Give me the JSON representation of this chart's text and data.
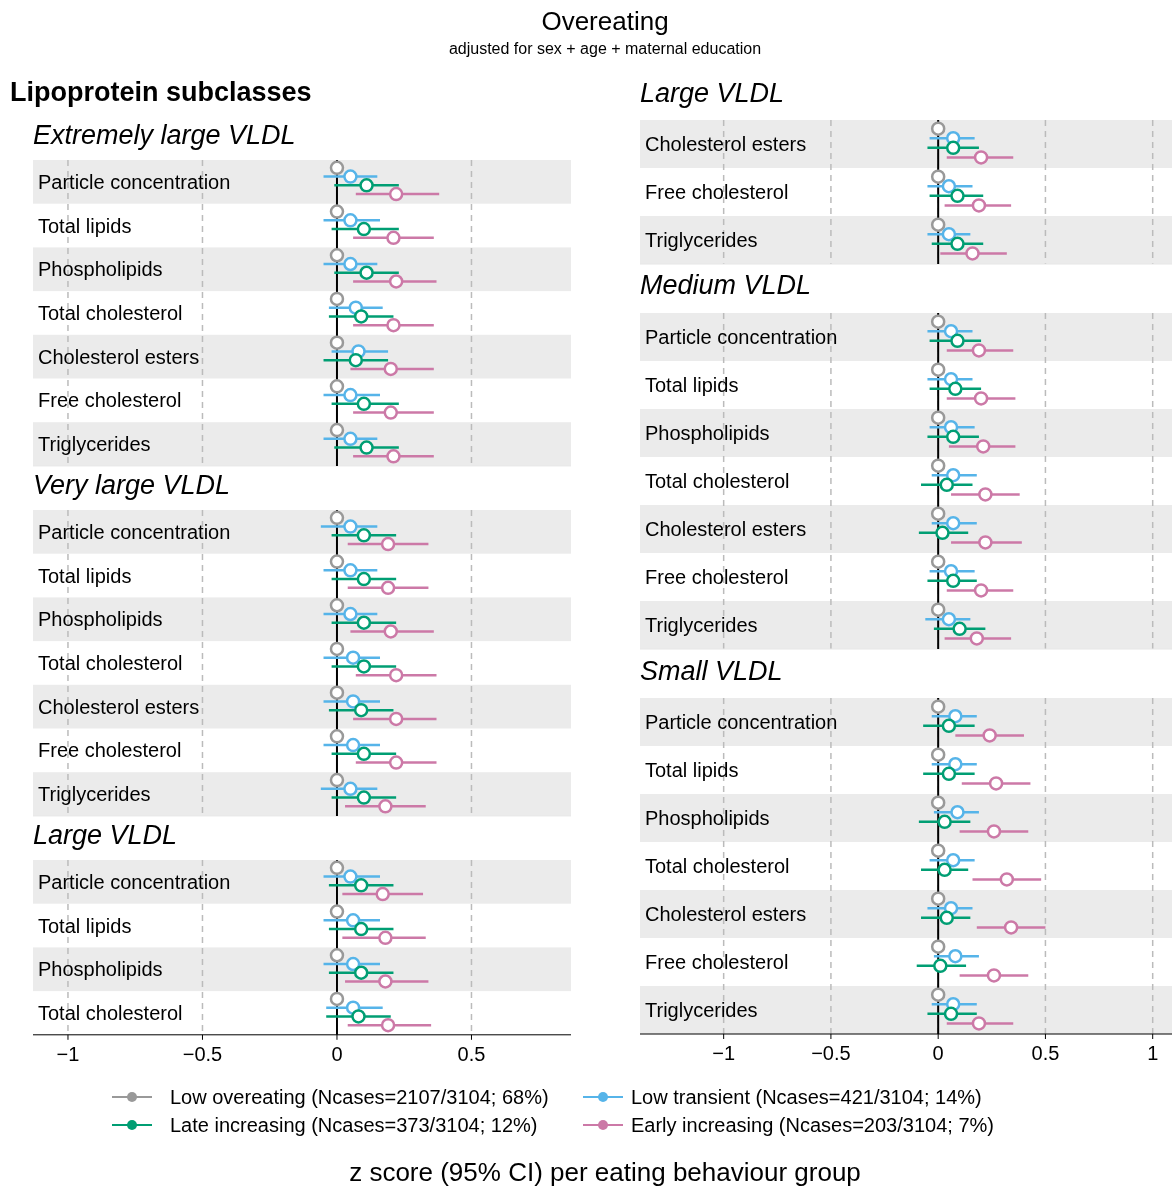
{
  "chart_data": [
    {
      "type": "other",
      "title": "Overeating",
      "subtitle": "adjusted for sex + age + maternal education",
      "annotations": [
        "Lipoprotein subclasses",
        "z score (95% CI) per eating behaviour group"
      ]
    },
    {
      "type": "scatter",
      "orientation": "horizontal",
      "title": "Extremely large VLDL",
      "categories": [
        "Particle concentration",
        "Total lipids",
        "Phospholipids",
        "Total cholesterol",
        "Cholesterol esters",
        "Free cholesterol",
        "Triglycerides"
      ],
      "xlim": [
        -1.13,
        0.87
      ],
      "xticks": [
        -1,
        -0.5,
        0,
        0.5
      ],
      "tick_labels": false,
      "grid": "x",
      "marker": "circle",
      "ref_lines": [
        {
          "axis": "x",
          "value": 0,
          "color": "#000000",
          "line_style": "solid"
        }
      ],
      "series": [
        {
          "color": "#999999",
          "values": [
            0,
            0,
            0,
            0,
            0,
            0,
            0
          ]
        },
        {
          "color": "#56b4e9",
          "values": [
            0.05,
            0.05,
            0.05,
            0.07,
            0.08,
            0.05,
            0.05
          ],
          "errors": [
            [
              -0.05,
              0.15
            ],
            [
              -0.05,
              0.16
            ],
            [
              -0.05,
              0.15
            ],
            [
              -0.03,
              0.17
            ],
            [
              -0.02,
              0.19
            ],
            [
              -0.05,
              0.16
            ],
            [
              -0.05,
              0.15
            ]
          ]
        },
        {
          "color": "#009e73",
          "values": [
            0.11,
            0.1,
            0.11,
            0.09,
            0.07,
            0.1,
            0.11
          ],
          "errors": [
            [
              -0.01,
              0.23
            ],
            [
              -0.02,
              0.23
            ],
            [
              -0.01,
              0.23
            ],
            [
              -0.03,
              0.21
            ],
            [
              -0.05,
              0.19
            ],
            [
              -0.02,
              0.23
            ],
            [
              -0.01,
              0.23
            ]
          ]
        },
        {
          "color": "#cc79a7",
          "values": [
            0.22,
            0.21,
            0.22,
            0.21,
            0.2,
            0.2,
            0.21
          ],
          "errors": [
            [
              0.07,
              0.38
            ],
            [
              0.06,
              0.36
            ],
            [
              0.06,
              0.37
            ],
            [
              0.06,
              0.36
            ],
            [
              0.05,
              0.36
            ],
            [
              0.06,
              0.36
            ],
            [
              0.06,
              0.36
            ]
          ]
        }
      ]
    },
    {
      "type": "scatter",
      "orientation": "horizontal",
      "title": "Very large VLDL",
      "categories": [
        "Particle concentration",
        "Total lipids",
        "Phospholipids",
        "Total cholesterol",
        "Cholesterol esters",
        "Free cholesterol",
        "Triglycerides"
      ],
      "xlim": [
        -1.13,
        0.87
      ],
      "xticks": [
        -1,
        -0.5,
        0,
        0.5
      ],
      "tick_labels": false,
      "grid": "x",
      "marker": "circle",
      "ref_lines": [
        {
          "axis": "x",
          "value": 0,
          "color": "#000000",
          "line_style": "solid"
        }
      ],
      "series": [
        {
          "color": "#999999",
          "values": [
            0,
            0,
            0,
            0,
            0,
            0,
            0
          ]
        },
        {
          "color": "#56b4e9",
          "values": [
            0.05,
            0.05,
            0.05,
            0.06,
            0.06,
            0.06,
            0.05
          ],
          "errors": [
            [
              -0.06,
              0.15
            ],
            [
              -0.05,
              0.15
            ],
            [
              -0.05,
              0.15
            ],
            [
              -0.05,
              0.16
            ],
            [
              -0.05,
              0.16
            ],
            [
              -0.05,
              0.16
            ],
            [
              -0.06,
              0.15
            ]
          ]
        },
        {
          "color": "#009e73",
          "values": [
            0.1,
            0.1,
            0.1,
            0.1,
            0.09,
            0.1,
            0.1
          ],
          "errors": [
            [
              -0.02,
              0.22
            ],
            [
              -0.02,
              0.22
            ],
            [
              -0.02,
              0.22
            ],
            [
              -0.02,
              0.22
            ],
            [
              -0.03,
              0.21
            ],
            [
              -0.02,
              0.22
            ],
            [
              -0.02,
              0.22
            ]
          ]
        },
        {
          "color": "#cc79a7",
          "values": [
            0.19,
            0.19,
            0.2,
            0.22,
            0.22,
            0.22,
            0.18
          ],
          "errors": [
            [
              0.04,
              0.34
            ],
            [
              0.04,
              0.34
            ],
            [
              0.05,
              0.36
            ],
            [
              0.07,
              0.37
            ],
            [
              0.06,
              0.37
            ],
            [
              0.07,
              0.37
            ],
            [
              0.03,
              0.33
            ]
          ]
        }
      ]
    },
    {
      "type": "scatter",
      "orientation": "horizontal",
      "title": "Large VLDL",
      "categories": [
        "Particle concentration",
        "Total lipids",
        "Phospholipids",
        "Total cholesterol"
      ],
      "xlim": [
        -1.13,
        0.87
      ],
      "xticks": [
        -1,
        -0.5,
        0,
        0.5
      ],
      "tick_labels": "x",
      "grid": "x",
      "marker": "circle",
      "ref_lines": [
        {
          "axis": "x",
          "value": 0,
          "color": "#000000",
          "line_style": "solid"
        }
      ],
      "series": [
        {
          "color": "#999999",
          "values": [
            0,
            0,
            0,
            0
          ]
        },
        {
          "color": "#56b4e9",
          "values": [
            0.05,
            0.06,
            0.06,
            0.06
          ],
          "errors": [
            [
              -0.05,
              0.16
            ],
            [
              -0.05,
              0.16
            ],
            [
              -0.05,
              0.16
            ],
            [
              -0.04,
              0.17
            ]
          ]
        },
        {
          "color": "#009e73",
          "values": [
            0.09,
            0.09,
            0.09,
            0.08
          ],
          "errors": [
            [
              -0.03,
              0.21
            ],
            [
              -0.03,
              0.21
            ],
            [
              -0.03,
              0.21
            ],
            [
              -0.04,
              0.2
            ]
          ]
        },
        {
          "color": "#cc79a7",
          "values": [
            0.17,
            0.18,
            0.18,
            0.19
          ],
          "errors": [
            [
              0.02,
              0.32
            ],
            [
              0.02,
              0.33
            ],
            [
              0.03,
              0.34
            ],
            [
              0.04,
              0.35
            ]
          ]
        }
      ]
    },
    {
      "type": "scatter",
      "orientation": "horizontal",
      "title": "Large VLDL",
      "categories": [
        "Cholesterol esters",
        "Free cholesterol",
        "Triglycerides"
      ],
      "xlim": [
        -1.39,
        1.09
      ],
      "xticks": [
        -1,
        -0.5,
        0,
        0.5,
        1
      ],
      "tick_labels": false,
      "grid": "x",
      "marker": "circle",
      "ref_lines": [
        {
          "axis": "x",
          "value": 0,
          "color": "#000000",
          "line_style": "solid"
        }
      ],
      "series": [
        {
          "color": "#999999",
          "values": [
            0,
            0,
            0
          ]
        },
        {
          "color": "#56b4e9",
          "values": [
            0.07,
            0.05,
            0.05
          ],
          "errors": [
            [
              -0.04,
              0.17
            ],
            [
              -0.05,
              0.16
            ],
            [
              -0.05,
              0.15
            ]
          ]
        },
        {
          "color": "#009e73",
          "values": [
            0.07,
            0.09,
            0.09
          ],
          "errors": [
            [
              -0.05,
              0.19
            ],
            [
              -0.04,
              0.21
            ],
            [
              -0.03,
              0.21
            ]
          ]
        },
        {
          "color": "#cc79a7",
          "values": [
            0.2,
            0.19,
            0.16
          ],
          "errors": [
            [
              0.04,
              0.35
            ],
            [
              0.03,
              0.34
            ],
            [
              0.01,
              0.32
            ]
          ]
        }
      ]
    },
    {
      "type": "scatter",
      "orientation": "horizontal",
      "title": "Medium VLDL",
      "categories": [
        "Particle concentration",
        "Total lipids",
        "Phospholipids",
        "Total cholesterol",
        "Cholesterol esters",
        "Free cholesterol",
        "Triglycerides"
      ],
      "xlim": [
        -1.39,
        1.09
      ],
      "xticks": [
        -1,
        -0.5,
        0,
        0.5,
        1
      ],
      "tick_labels": false,
      "grid": "x",
      "marker": "circle",
      "ref_lines": [
        {
          "axis": "x",
          "value": 0,
          "color": "#000000",
          "line_style": "solid"
        }
      ],
      "series": [
        {
          "color": "#999999",
          "values": [
            0,
            0,
            0,
            0,
            0,
            0,
            0
          ]
        },
        {
          "color": "#56b4e9",
          "values": [
            0.06,
            0.06,
            0.06,
            0.07,
            0.07,
            0.06,
            0.05
          ],
          "errors": [
            [
              -0.05,
              0.16
            ],
            [
              -0.05,
              0.16
            ],
            [
              -0.04,
              0.17
            ],
            [
              -0.03,
              0.18
            ],
            [
              -0.03,
              0.18
            ],
            [
              -0.04,
              0.17
            ],
            [
              -0.06,
              0.15
            ]
          ]
        },
        {
          "color": "#009e73",
          "values": [
            0.09,
            0.08,
            0.07,
            0.04,
            0.02,
            0.07,
            0.1
          ],
          "errors": [
            [
              -0.04,
              0.2
            ],
            [
              -0.04,
              0.2
            ],
            [
              -0.05,
              0.19
            ],
            [
              -0.08,
              0.16
            ],
            [
              -0.09,
              0.14
            ],
            [
              -0.05,
              0.18
            ],
            [
              -0.02,
              0.22
            ]
          ]
        },
        {
          "color": "#cc79a7",
          "values": [
            0.19,
            0.2,
            0.21,
            0.22,
            0.22,
            0.2,
            0.18
          ],
          "errors": [
            [
              0.04,
              0.35
            ],
            [
              0.04,
              0.36
            ],
            [
              0.05,
              0.36
            ],
            [
              0.06,
              0.38
            ],
            [
              0.06,
              0.39
            ],
            [
              0.04,
              0.35
            ],
            [
              0.03,
              0.34
            ]
          ]
        }
      ]
    },
    {
      "type": "scatter",
      "orientation": "horizontal",
      "title": "Small VLDL",
      "categories": [
        "Particle concentration",
        "Total lipids",
        "Phospholipids",
        "Total cholesterol",
        "Cholesterol esters",
        "Free cholesterol",
        "Triglycerides"
      ],
      "xlim": [
        -1.39,
        1.09
      ],
      "xticks": [
        -1,
        -0.5,
        0,
        0.5,
        1
      ],
      "tick_labels": "x",
      "grid": "x",
      "marker": "circle",
      "legend": "bottom",
      "ref_lines": [
        {
          "axis": "x",
          "value": 0,
          "color": "#000000",
          "line_style": "solid"
        }
      ],
      "series": [
        {
          "name": "Low overeating (Ncases=2107/3104; 68%)",
          "color": "#999999",
          "values": [
            0,
            0,
            0,
            0,
            0,
            0,
            0
          ]
        },
        {
          "name": "Low transient (Ncases=421/3104; 14%)",
          "color": "#56b4e9",
          "values": [
            0.08,
            0.08,
            0.09,
            0.07,
            0.06,
            0.08,
            0.07
          ],
          "errors": [
            [
              -0.03,
              0.18
            ],
            [
              -0.03,
              0.18
            ],
            [
              -0.02,
              0.19
            ],
            [
              -0.04,
              0.17
            ],
            [
              -0.05,
              0.16
            ],
            [
              -0.02,
              0.19
            ],
            [
              -0.03,
              0.18
            ]
          ]
        },
        {
          "name": "Late increasing (Ncases=373/3104; 12%)",
          "color": "#009e73",
          "values": [
            0.05,
            0.05,
            0.03,
            0.03,
            0.04,
            0.01,
            0.06
          ],
          "errors": [
            [
              -0.07,
              0.17
            ],
            [
              -0.07,
              0.17
            ],
            [
              -0.09,
              0.15
            ],
            [
              -0.08,
              0.14
            ],
            [
              -0.08,
              0.15
            ],
            [
              -0.1,
              0.13
            ],
            [
              -0.05,
              0.18
            ]
          ]
        },
        {
          "name": "Early increasing (Ncases=203/3104; 7%)",
          "color": "#cc79a7",
          "values": [
            0.24,
            0.27,
            0.26,
            0.32,
            0.34,
            0.26,
            0.19
          ],
          "errors": [
            [
              0.08,
              0.4
            ],
            [
              0.11,
              0.43
            ],
            [
              0.1,
              0.42
            ],
            [
              0.16,
              0.48
            ],
            [
              0.18,
              0.5
            ],
            [
              0.1,
              0.42
            ],
            [
              0.04,
              0.35
            ]
          ]
        }
      ]
    }
  ]
}
